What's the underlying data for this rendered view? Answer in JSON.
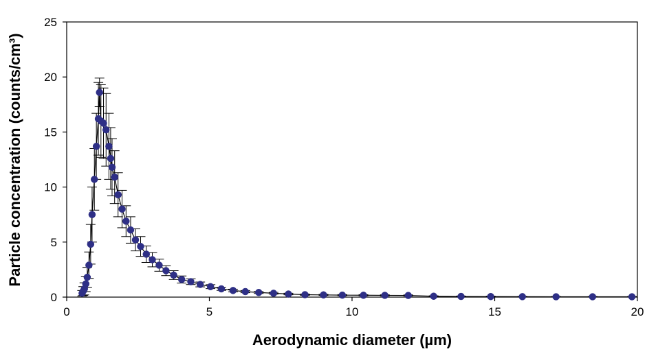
{
  "chart_data": {
    "type": "scatter",
    "title": "",
    "xlabel": "Aerodynamic diameter (µm)",
    "ylabel": "Particle concentration (counts/cm³)",
    "xlim": [
      0,
      20
    ],
    "ylim": [
      0,
      25
    ],
    "x_ticks": [
      "0",
      "5",
      "10",
      "15",
      "20"
    ],
    "y_ticks": [
      "0",
      "5",
      "10",
      "15",
      "20",
      "25"
    ],
    "grid": false,
    "legend": "none",
    "marker_color": "#2E2F86",
    "line_color": "#000000",
    "series": [
      {
        "x": [
          0.54,
          0.58,
          0.62,
          0.67,
          0.72,
          0.78,
          0.84,
          0.89,
          0.97,
          1.04,
          1.11,
          1.15,
          1.2,
          1.29,
          1.38,
          1.48,
          1.54,
          1.59,
          1.68,
          1.8,
          1.94,
          2.08,
          2.24,
          2.41,
          2.59,
          2.79,
          3.0,
          3.24,
          3.48,
          3.75,
          4.03,
          4.35,
          4.68,
          5.04,
          5.42,
          5.83,
          6.26,
          6.73,
          7.25,
          7.77,
          8.35,
          9.0,
          9.66,
          10.4,
          11.15,
          11.97,
          12.86,
          13.82,
          14.86,
          15.97,
          17.15,
          18.43,
          19.81
        ],
        "y": [
          0.35,
          0.55,
          0.75,
          1.2,
          1.8,
          2.9,
          4.8,
          7.5,
          10.7,
          13.7,
          16.2,
          18.6,
          16.0,
          15.8,
          15.2,
          13.7,
          12.6,
          11.8,
          10.9,
          9.3,
          8.0,
          6.9,
          6.1,
          5.2,
          4.6,
          3.9,
          3.4,
          2.9,
          2.4,
          2.0,
          1.6,
          1.4,
          1.15,
          0.95,
          0.75,
          0.6,
          0.5,
          0.42,
          0.35,
          0.28,
          0.22,
          0.2,
          0.18,
          0.17,
          0.16,
          0.15,
          0.08,
          0.06,
          0.05,
          0.04,
          0.03,
          0.03,
          0.03
        ],
        "error": [
          0.25,
          0.4,
          0.55,
          0.7,
          0.9,
          1.2,
          1.8,
          2.5,
          2.8,
          3.0,
          3.3,
          1.3,
          3.3,
          3.2,
          3.3,
          3.0,
          2.8,
          2.6,
          2.4,
          2.0,
          1.7,
          1.4,
          1.2,
          1.0,
          0.9,
          0.75,
          0.65,
          0.55,
          0.45,
          0.4,
          0.32,
          0.26,
          0.22,
          0.18,
          0.14,
          0.12,
          0.1,
          0.09,
          0.08,
          0.07,
          0.06,
          0.05,
          0.05,
          0.05,
          0.05,
          0.05,
          0.04,
          0.04,
          0.04,
          0.03,
          0.03,
          0.03,
          0.03
        ]
      }
    ]
  }
}
